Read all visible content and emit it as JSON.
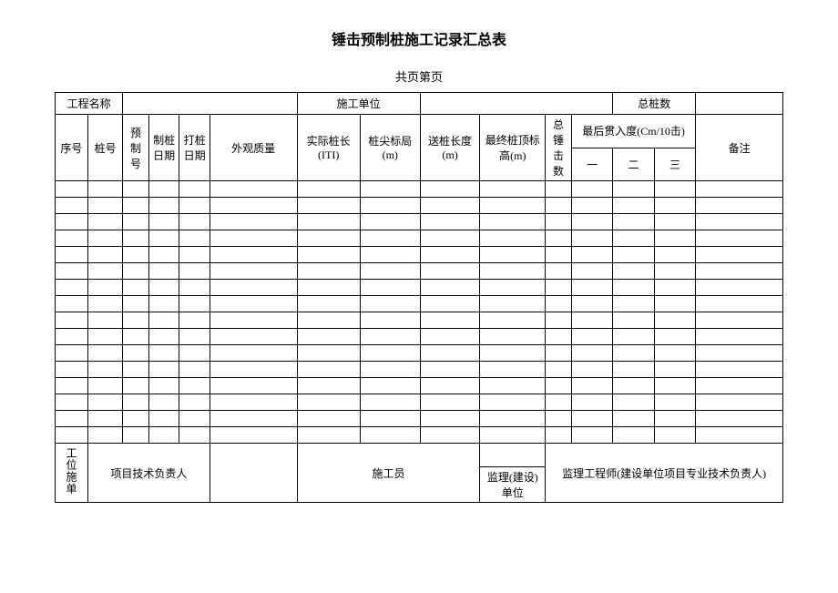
{
  "title": "锤击预制桩施工记录汇总表",
  "subtitle": "共页第页",
  "header_row": {
    "project_name_label": "工程名称",
    "construction_unit_label": "施工单位",
    "total_piles_label": "总桩数"
  },
  "columns": {
    "seq": "序号",
    "pile_no": "桩号",
    "prefab_no": "预制号",
    "make_date": "制桩日期",
    "drive_date": "打桩日期",
    "appearance": "外观质量",
    "actual_length": "实际桩长(ITI)",
    "tip_elevation": "桩尖标局(m)",
    "send_length": "送桩长度(m)",
    "final_top_elev": "最终桩顶标高(m)",
    "total_hammer": "总锤击数",
    "penetration_group": "最后贯入度(Cm/10击)",
    "pen_1": "一",
    "pen_2": "二",
    "pen_3": "三",
    "remark": "备注"
  },
  "footer": {
    "unit_label": "工位施单",
    "tech_lead": "项目技术负责人",
    "constructor": "施工员",
    "supervisor_unit": "监理(建设)单位",
    "supervisor_eng": "监理工程师(建设单位项目专业技术负责人)"
  },
  "style": {
    "border_color": "#000000",
    "background": "#ffffff",
    "font_size_title": 16,
    "font_size_body": 12,
    "data_row_count": 16
  }
}
